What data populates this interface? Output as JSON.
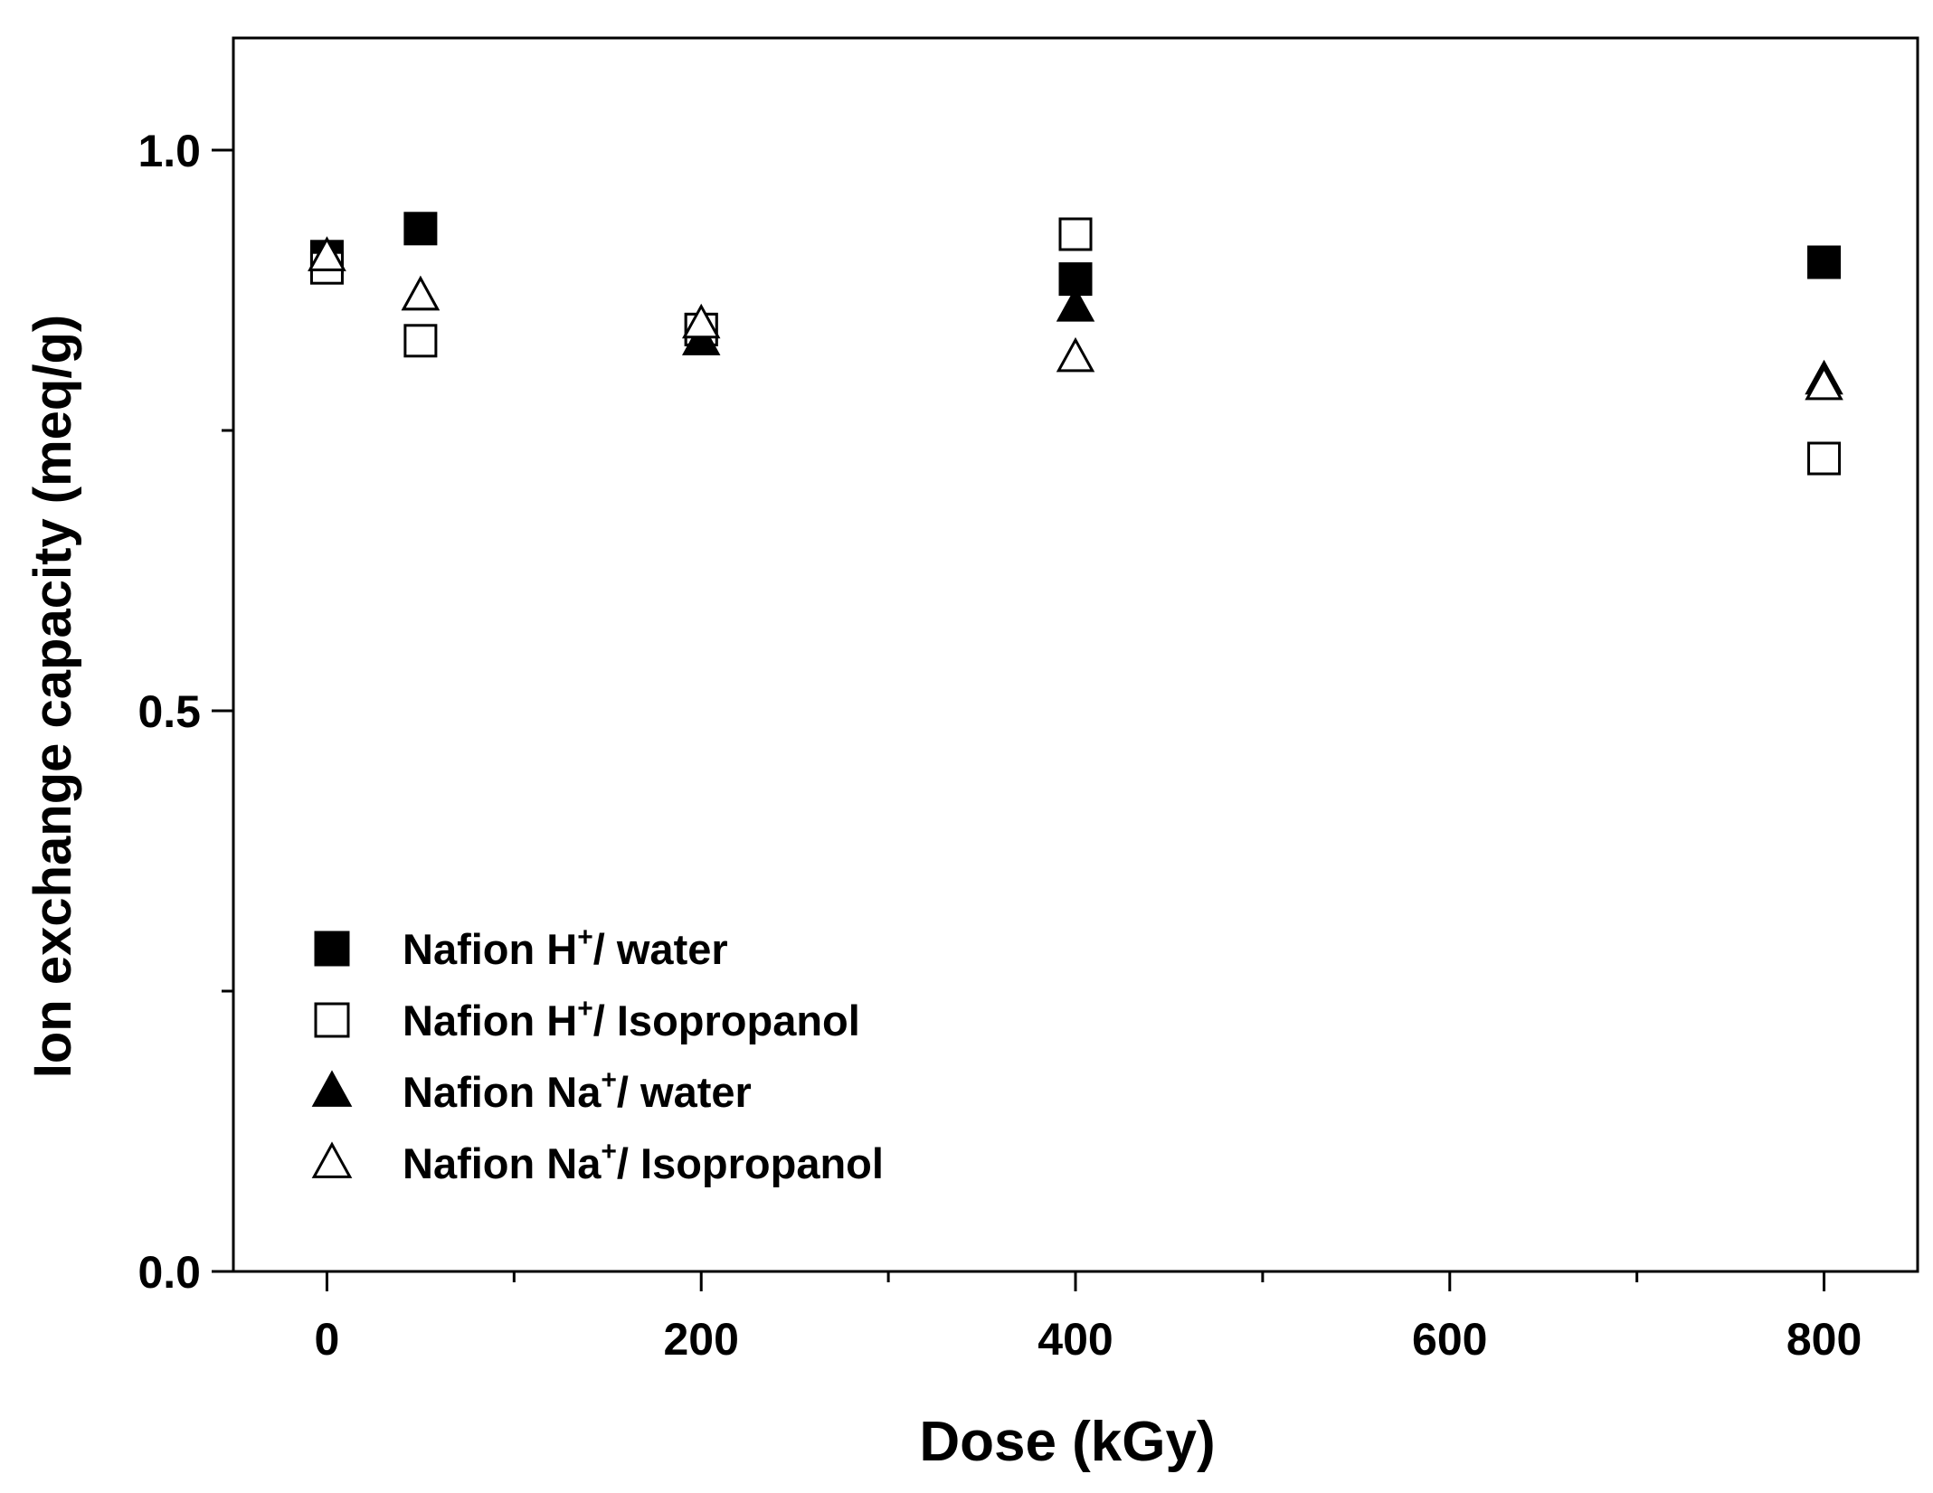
{
  "chart_data": {
    "type": "scatter",
    "xlabel": "Dose (kGy)",
    "ylabel": "Ion exchange capacity (meq/g)",
    "xlim": [
      -50,
      850
    ],
    "ylim": [
      0,
      1.1
    ],
    "x_ticks": [
      0,
      200,
      400,
      600,
      800
    ],
    "x_tick_labels": [
      "0",
      "200",
      "400",
      "600",
      "800"
    ],
    "y_ticks": [
      0.0,
      0.5,
      1.0
    ],
    "y_tick_labels": [
      "0.0",
      "0.5",
      "1.0"
    ],
    "grid": false,
    "legend_position": "bottom-left",
    "series": [
      {
        "name": "Nafion H+/ water",
        "label_parts": [
          "Nafion H",
          "+",
          "/ water"
        ],
        "marker": "square",
        "filled": true,
        "x": [
          0,
          50,
          200,
          400,
          800
        ],
        "y": [
          0.905,
          0.93,
          0.84,
          0.885,
          0.9
        ]
      },
      {
        "name": "Nafion H+/ Isopropanol",
        "label_parts": [
          "Nafion H",
          "+",
          "/ Isopropanol"
        ],
        "marker": "square",
        "filled": false,
        "x": [
          0,
          50,
          200,
          400,
          800
        ],
        "y": [
          0.895,
          0.83,
          0.84,
          0.925,
          0.725
        ]
      },
      {
        "name": "Nafion Na+/ water",
        "label_parts": [
          "Nafion Na",
          "+",
          "/ water"
        ],
        "marker": "triangle",
        "filled": true,
        "x": [
          0,
          50,
          200,
          400,
          800
        ],
        "y": [
          0.905,
          0.87,
          0.83,
          0.86,
          0.795
        ]
      },
      {
        "name": "Nafion Na+/ Isopropanol",
        "label_parts": [
          "Nafion Na",
          "+",
          "/ Isopropanol"
        ],
        "marker": "triangle",
        "filled": false,
        "x": [
          0,
          50,
          200,
          400,
          800
        ],
        "y": [
          0.905,
          0.87,
          0.845,
          0.815,
          0.79
        ]
      }
    ]
  }
}
